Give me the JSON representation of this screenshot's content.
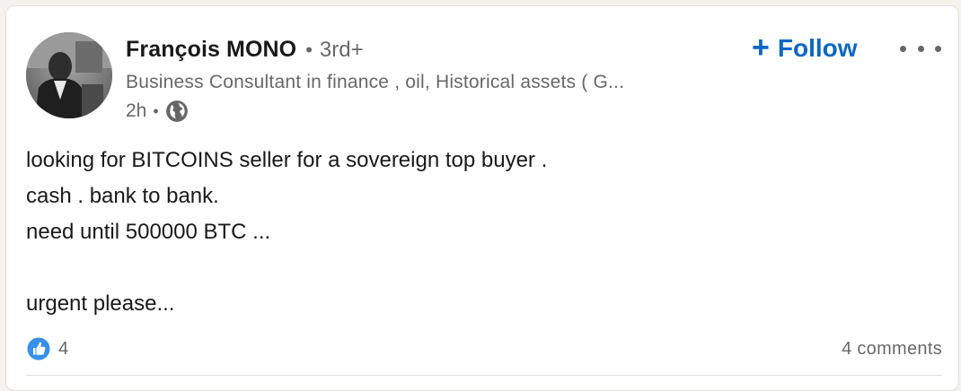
{
  "post": {
    "author": {
      "name": "François MONO",
      "separator": "•",
      "degree": "3rd+",
      "headline": "Business Consultant in finance , oil, Historical assets ( G...",
      "time": "2h",
      "time_separator": "•",
      "visibility_icon": "globe-icon"
    },
    "actions": {
      "follow_label": "Follow",
      "follow_icon": "+",
      "more_icon": "more-horizontal-icon"
    },
    "body_lines": [
      "looking for BITCOINS seller for a sovereign top buyer .",
      "cash . bank to bank.",
      "need until 500000 BTC ...",
      "",
      "urgent please..."
    ],
    "social": {
      "reaction_icon": "like-icon",
      "reaction_count": "4",
      "comments_label": "4 comments"
    }
  },
  "colors": {
    "brand_blue": "#0a66c2",
    "like_blue": "#378fe9",
    "secondary_text": "#666666",
    "background": "#f3f2ef"
  }
}
